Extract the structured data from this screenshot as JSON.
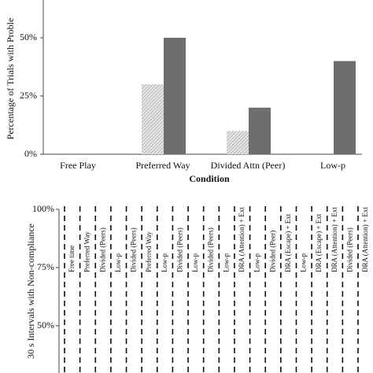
{
  "chart_data": [
    {
      "type": "bar",
      "y_label": "Percentage of Trials with Proble",
      "x_label": "Condition",
      "categories": [
        "Free Play",
        "Preferred Way",
        "Divided Attn (Peer)",
        "Low-p"
      ],
      "series": [
        {
          "color": "#d0d0d0",
          "pattern": "hatch",
          "values": [
            0,
            30,
            10,
            0
          ]
        },
        {
          "color": "#6e6e6e",
          "values": [
            0,
            50,
            20,
            40
          ]
        }
      ],
      "ylim": [
        0,
        60
      ],
      "yticks": [
        {
          "value": 0,
          "label": "0%"
        },
        {
          "value": 25,
          "label": "25%"
        },
        {
          "value": 50,
          "label": "50%"
        }
      ]
    },
    {
      "type": "phase",
      "y_label": "30 s Intervals with Non-compliance",
      "phases": [
        "Free time",
        "Preferred Way",
        "Divided (Peers)",
        "Low-p",
        "Divided (Peers)",
        "Preferred Way",
        "Low-p",
        "Divided (Peers)",
        "Low-p",
        "Divided (Peers)",
        "Low-p",
        "DRA (Attention) + Ext",
        "Low-p",
        "Divided (Peer)",
        "DRA (Escape) + Ext",
        "Low-p",
        "DRA (Escape) + Ext",
        "DRA (Attention) + Ext",
        "Divided (Peers)",
        "DRA (Attention) + Ext"
      ],
      "ylim": [
        25,
        100
      ],
      "yticks": [
        {
          "value": 50,
          "label": "50%"
        },
        {
          "value": 75,
          "label": "75%"
        },
        {
          "value": 100,
          "label": "100%"
        }
      ]
    }
  ]
}
